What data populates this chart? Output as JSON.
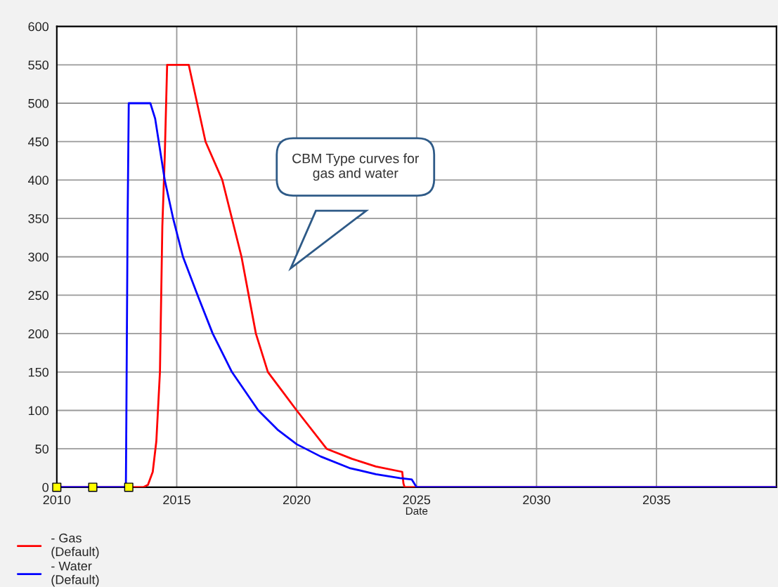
{
  "chart_data": {
    "type": "line",
    "xlabel": "Date",
    "xlim": [
      2010,
      2040
    ],
    "ylim": [
      0,
      600
    ],
    "xticks": [
      2010,
      2015,
      2020,
      2025,
      2030,
      2035
    ],
    "yticks": [
      0,
      50,
      100,
      150,
      200,
      250,
      300,
      350,
      400,
      450,
      500,
      550,
      600
    ],
    "grid": true,
    "legend": "bottom left",
    "line_style": "solid",
    "marker": "none",
    "annotations": [
      "CBM Type curves for\ngas and water"
    ],
    "series": [
      {
        "name": "- Gas\n(Default)",
        "color": "#ff0000",
        "x": [
          2010,
          2013.6,
          2013.8,
          2014.0,
          2014.15,
          2014.3,
          2014.4,
          2014.5,
          2014.6,
          2015.5,
          2016.2,
          2016.9,
          2017.7,
          2018.3,
          2018.8,
          2019.4,
          2020.0,
          2021.25,
          2022.3,
          2023.3,
          2024.4,
          2024.45,
          2024.5,
          2040
        ],
        "values": [
          0,
          0,
          3,
          20,
          60,
          150,
          340,
          430,
          550,
          550,
          450,
          400,
          300,
          200,
          150,
          125,
          100,
          50,
          37,
          27,
          20,
          5,
          0,
          0
        ]
      },
      {
        "name": "- Water\n(Default)",
        "color": "#0000ff",
        "x": [
          2010,
          2012.88,
          2012.9,
          2012.95,
          2013.0,
          2013.9,
          2014.1,
          2014.5,
          2014.85,
          2015.26,
          2015.87,
          2016.5,
          2017.3,
          2018.4,
          2019.2,
          2020.0,
          2021.0,
          2022.2,
          2023.3,
          2024.3,
          2024.8,
          2025.0,
          2040
        ],
        "values": [
          0,
          0,
          90,
          340,
          500,
          500,
          480,
          400,
          350,
          300,
          250,
          200,
          150,
          100,
          75,
          56,
          40,
          25,
          17,
          12,
          10,
          0,
          0
        ]
      },
      {
        "type": "scatter",
        "color": "#ffff00",
        "marker": "square",
        "x": [
          2010,
          2011.5,
          2013
        ],
        "values": [
          0,
          0,
          0
        ]
      }
    ]
  }
}
